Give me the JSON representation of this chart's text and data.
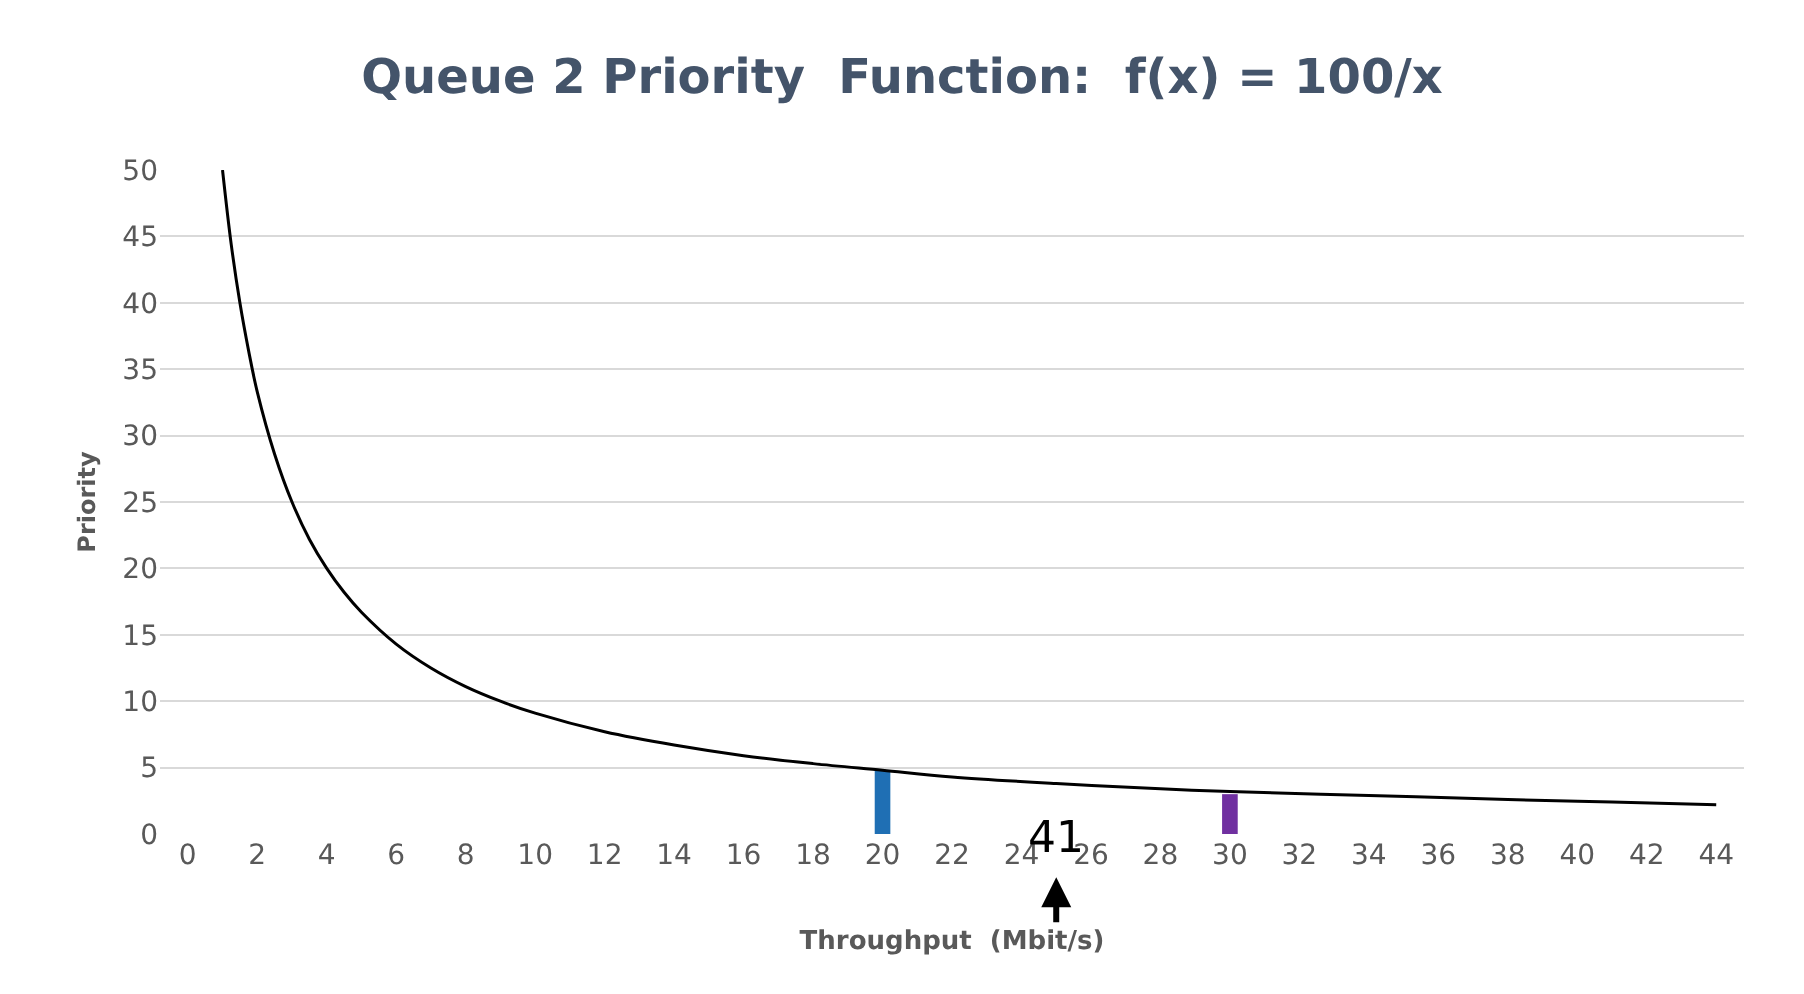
{
  "chart_data": {
    "type": "line",
    "title": "Queue 2 Priority  Function:  f(x) = 100/x",
    "xlabel": "Throughput  (Mbit/s)",
    "ylabel": "Priority",
    "series": [
      {
        "color": "#000000",
        "x": [
          1,
          1.25,
          1.5,
          1.75,
          2,
          2.5,
          3,
          3.5,
          4,
          4.5,
          5,
          6,
          7,
          8,
          9,
          10,
          12,
          14,
          16,
          18,
          20,
          22,
          25,
          28,
          30,
          34,
          38,
          41,
          44
        ],
        "values": [
          50,
          44.4,
          40,
          36.4,
          33.3,
          28.6,
          25,
          22.2,
          20,
          18.2,
          16.7,
          14.3,
          12.5,
          11.1,
          10,
          9.1,
          7.7,
          6.7,
          5.9,
          5.3,
          4.8,
          4.3,
          3.8,
          3.4,
          3.2,
          2.9,
          2.6,
          2.4,
          2.2
        ]
      },
      {
        "type": "bar",
        "x": [
          20,
          30
        ],
        "values": [
          4.8,
          3
        ],
        "colors": [
          "#1f6fb4",
          "#7030a0"
        ]
      }
    ],
    "annotations": [
      "41"
    ],
    "xlim": [
      -0.8,
      44.8
    ],
    "xticks": [
      0,
      2,
      4,
      6,
      8,
      10,
      12,
      14,
      16,
      18,
      20,
      22,
      24,
      26,
      28,
      30,
      32,
      34,
      36,
      38,
      40,
      42,
      44
    ],
    "ylim": [
      0,
      50
    ],
    "yticks": [
      0,
      5,
      10,
      15,
      20,
      25,
      30,
      35,
      40,
      45,
      50
    ],
    "grid": "y",
    "marker": "none",
    "line_style": "solid"
  }
}
